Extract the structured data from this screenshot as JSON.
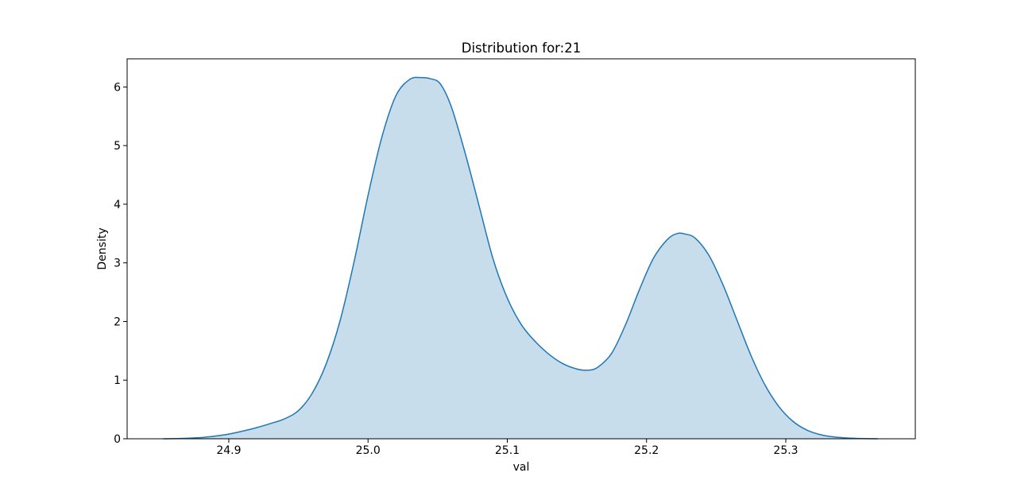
{
  "chart_data": {
    "type": "area",
    "title": "Distribution for:21",
    "xlabel": "val",
    "ylabel": "Density",
    "xlim": [
      24.827,
      25.393
    ],
    "ylim": [
      0,
      6.48
    ],
    "xticks": [
      24.9,
      25.0,
      25.1,
      25.2,
      25.3
    ],
    "xtick_labels": [
      "24.9",
      "25.0",
      "25.1",
      "25.2",
      "25.3"
    ],
    "yticks": [
      0,
      1,
      2,
      3,
      4,
      5,
      6
    ],
    "ytick_labels": [
      "0",
      "1",
      "2",
      "3",
      "4",
      "5",
      "6"
    ],
    "grid": false,
    "legend": "none",
    "line_color": "#1f77b4",
    "fill_color": "#1f77b4",
    "fill_opacity": 0.25,
    "series": [
      {
        "x": [
          24.853,
          24.865,
          24.88,
          24.89,
          24.9,
          24.91,
          24.92,
          24.93,
          24.94,
          24.95,
          24.96,
          24.97,
          24.98,
          24.99,
          25.0,
          25.01,
          25.02,
          25.03,
          25.038,
          25.045,
          25.052,
          25.06,
          25.07,
          25.08,
          25.09,
          25.1,
          25.11,
          25.12,
          25.13,
          25.14,
          25.15,
          25.158,
          25.165,
          25.175,
          25.185,
          25.195,
          25.205,
          25.215,
          25.222,
          25.228,
          25.235,
          25.245,
          25.255,
          25.265,
          25.275,
          25.285,
          25.295,
          25.305,
          25.315,
          25.325,
          25.335,
          25.345,
          25.355,
          25.366
        ],
        "y": [
          0.0,
          0.005,
          0.02,
          0.045,
          0.08,
          0.13,
          0.19,
          0.26,
          0.34,
          0.48,
          0.78,
          1.28,
          2.02,
          3.02,
          4.15,
          5.15,
          5.85,
          6.13,
          6.16,
          6.14,
          6.05,
          5.65,
          4.85,
          3.95,
          3.05,
          2.4,
          1.95,
          1.66,
          1.44,
          1.28,
          1.19,
          1.17,
          1.22,
          1.46,
          1.95,
          2.55,
          3.08,
          3.4,
          3.5,
          3.49,
          3.42,
          3.12,
          2.62,
          2.02,
          1.42,
          0.92,
          0.55,
          0.3,
          0.15,
          0.07,
          0.03,
          0.012,
          0.004,
          0.0
        ]
      }
    ]
  }
}
